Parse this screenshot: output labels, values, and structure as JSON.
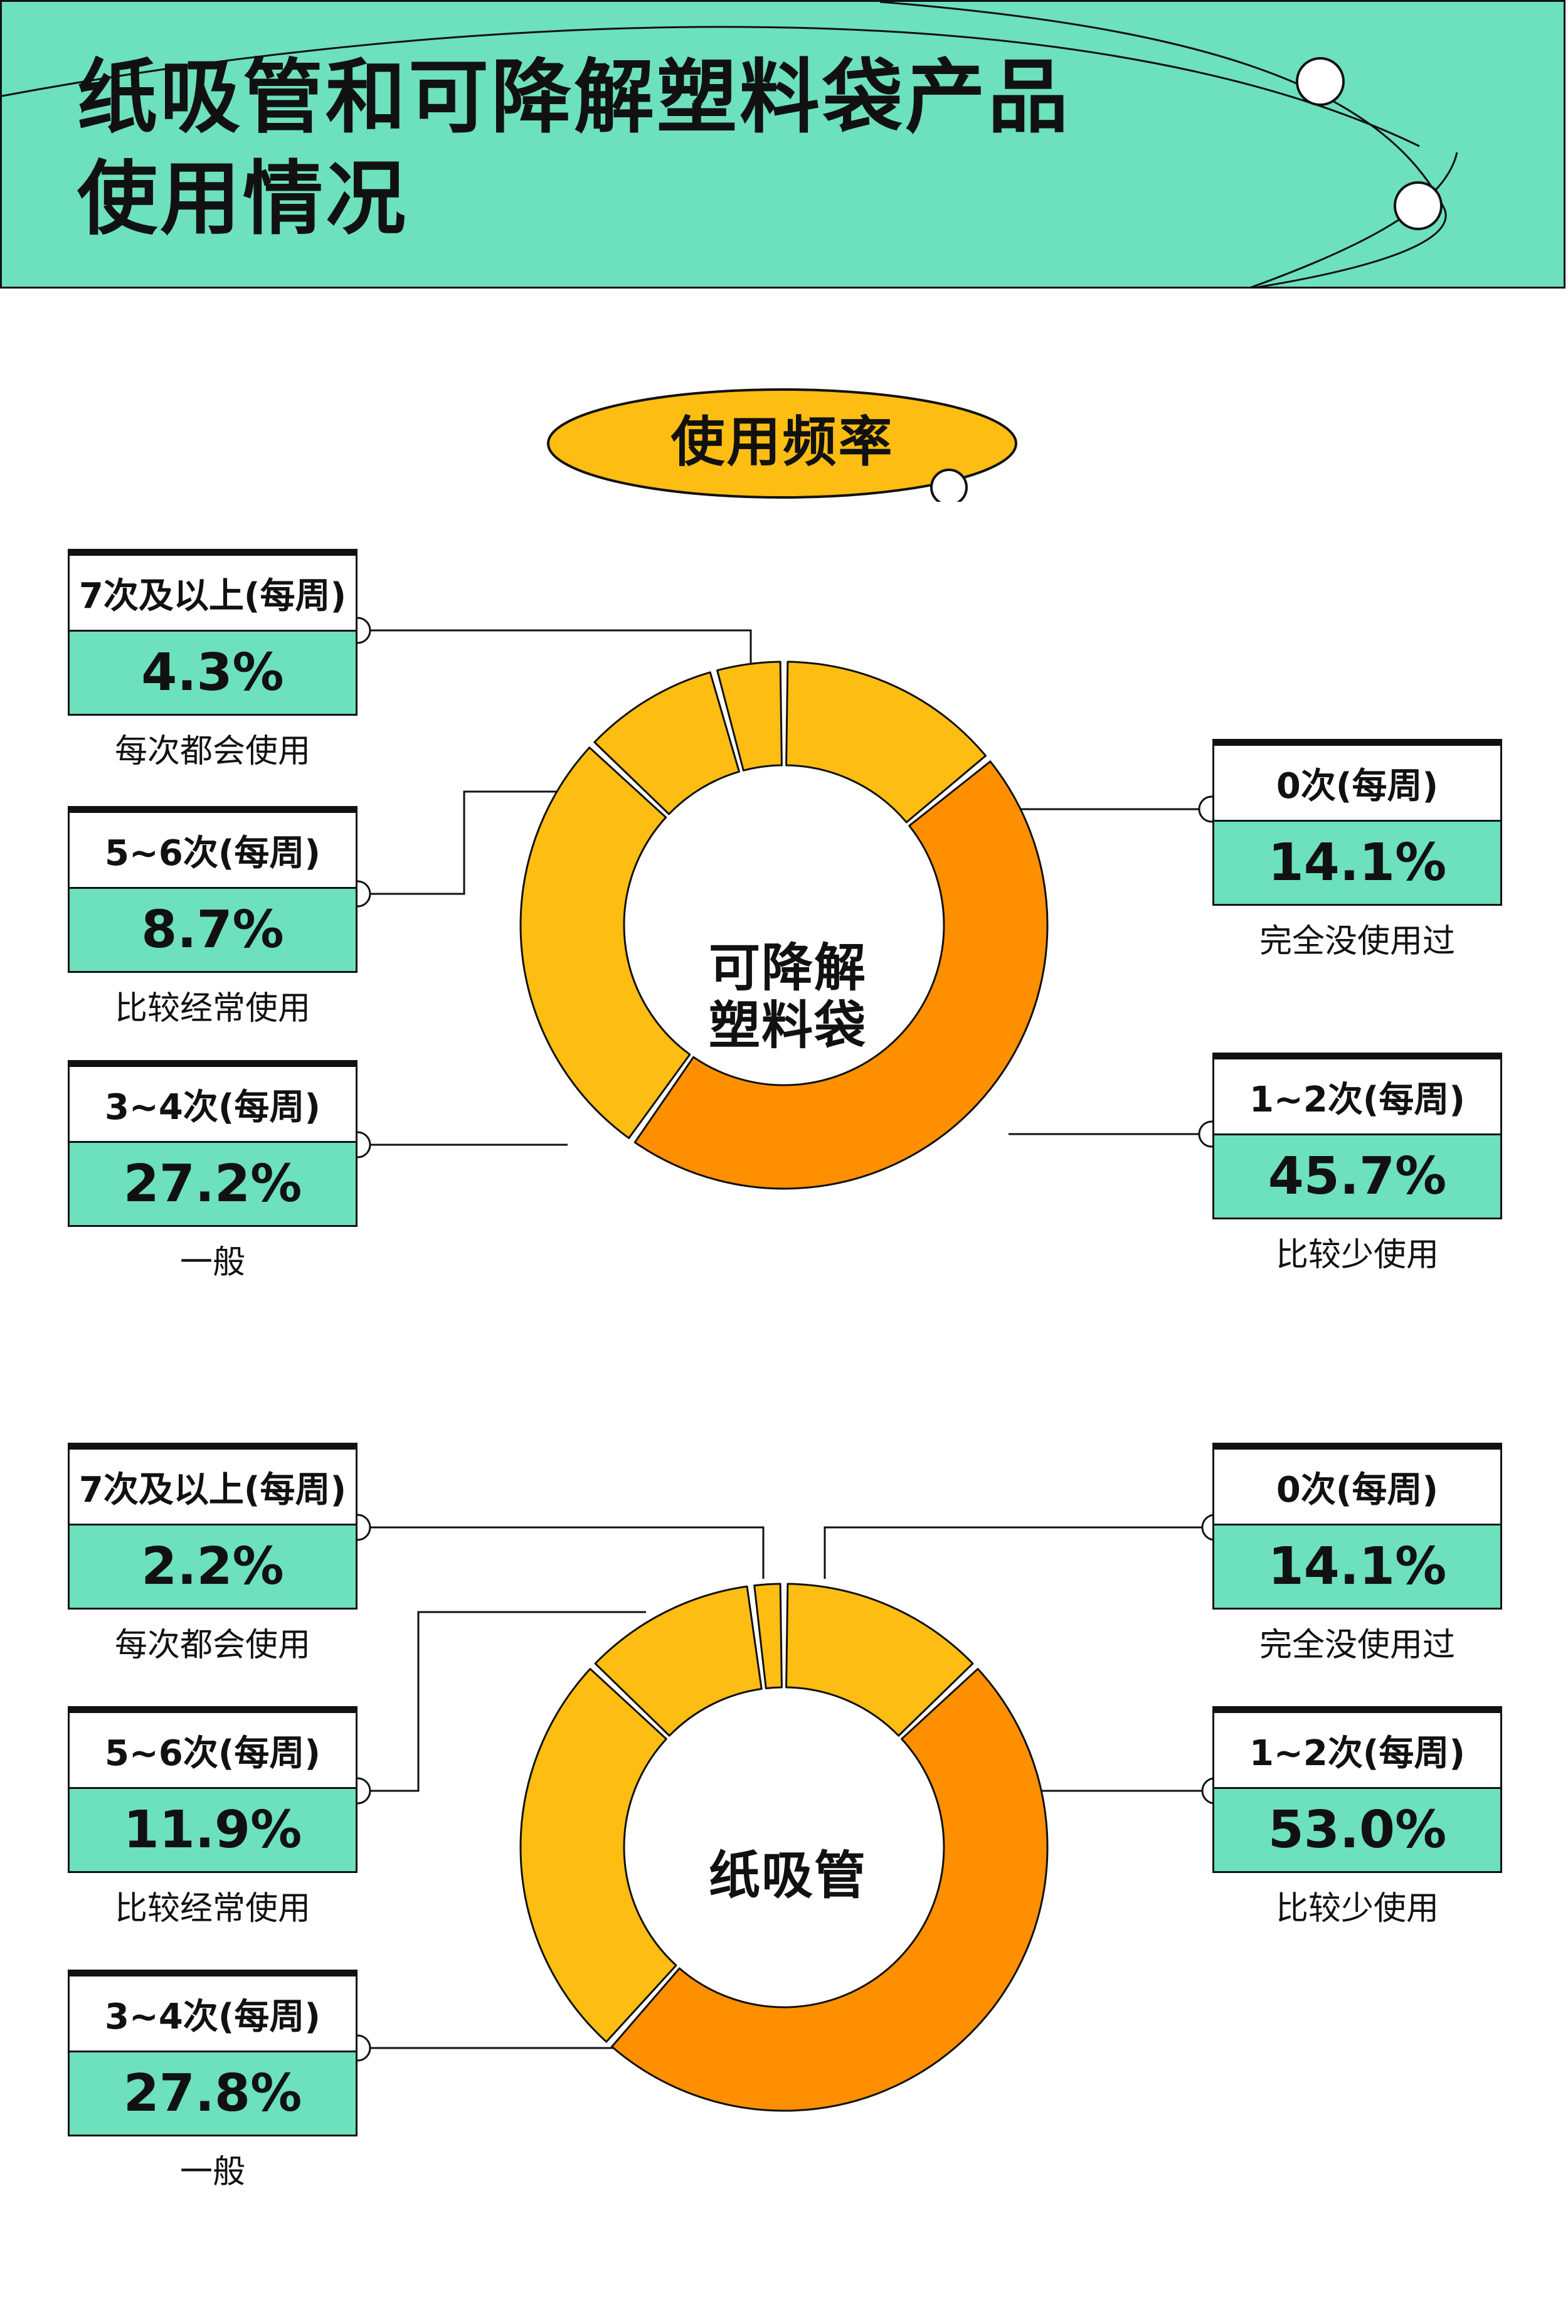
{
  "header": {
    "title_line1": "纸吸管和可降解塑料袋产品",
    "title_line2": "使用情况",
    "bg_color": "#6de0bd"
  },
  "section": {
    "label": "使用频率",
    "badge_color": "#fdbd12"
  },
  "colors": {
    "slice": "#fdbd12",
    "highlight": "#fd8f00",
    "card": "#6de0bd",
    "outline": "#111111"
  },
  "chart_data": [
    {
      "type": "pie",
      "title": "可降解塑料袋",
      "categories": [
        "0次(每周)",
        "1~2次(每周)",
        "3~4次(每周)",
        "5~6次(每周)",
        "7次及以上(每周)"
      ],
      "values": [
        14.1,
        45.7,
        27.2,
        8.7,
        4.3
      ],
      "value_labels": [
        "14.1%",
        "45.7%",
        "27.2%",
        "8.7%",
        "4.3%"
      ],
      "descriptions": [
        "完全没使用过",
        "比较少使用",
        "一般",
        "比较经常使用",
        "每次都会使用"
      ]
    },
    {
      "type": "pie",
      "title": "纸吸管",
      "categories": [
        "0次(每周)",
        "1~2次(每周)",
        "3~4次(每周)",
        "5~6次(每周)",
        "7次及以上(每周)"
      ],
      "values": [
        14.1,
        53.0,
        27.8,
        11.9,
        2.2
      ],
      "value_labels": [
        "14.1%",
        "53.0%",
        "27.8%",
        "11.9%",
        "2.2%"
      ],
      "descriptions": [
        "完全没使用过",
        "比较少使用",
        "一般",
        "比较经常使用",
        "每次都会使用"
      ]
    }
  ]
}
